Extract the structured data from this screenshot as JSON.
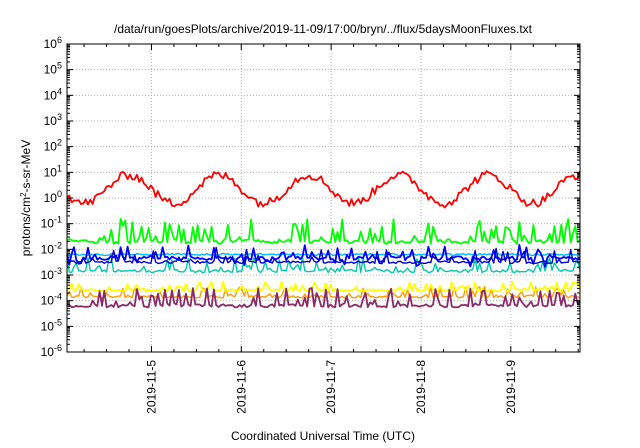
{
  "chart_data": {
    "type": "line",
    "title": "/data/run/goesPlots/archive/2019-11-09/17:00/bryn/../flux/5daysMoonFluxes.txt",
    "xlabel": "Coordinated Universal Time (UTC)",
    "ylabel": {
      "prefix": "protons/cm",
      "sup": "2",
      "suffix": "-s-sr-MeV"
    },
    "yscale": "log",
    "ylim_exp": [
      -6,
      6
    ],
    "y_ticks": [
      {
        "base": "10",
        "exp": "-6"
      },
      {
        "base": "10",
        "exp": "-5"
      },
      {
        "base": "10",
        "exp": "-4"
      },
      {
        "base": "10",
        "exp": "-3"
      },
      {
        "base": "10",
        "exp": "-2"
      },
      {
        "base": "10",
        "exp": "-1"
      },
      {
        "base": "10",
        "exp": "0"
      },
      {
        "base": "10",
        "exp": "1"
      },
      {
        "base": "10",
        "exp": "2"
      },
      {
        "base": "10",
        "exp": "3"
      },
      {
        "base": "10",
        "exp": "4"
      },
      {
        "base": "10",
        "exp": "5"
      },
      {
        "base": "10",
        "exp": "6"
      }
    ],
    "xlim_days": [
      4.06,
      9.77
    ],
    "x_ticks": [
      {
        "label": "2019-11-5",
        "day": 5
      },
      {
        "label": "2019-11-6",
        "day": 6
      },
      {
        "label": "2019-11-7",
        "day": 7
      },
      {
        "label": "2019-11-8",
        "day": 8
      },
      {
        "label": "2019-11-9",
        "day": 9
      }
    ],
    "grid": true,
    "series_style": [
      {
        "color": "#ff0000",
        "width": 1.8
      },
      {
        "color": "#00ff00",
        "width": 1.8
      },
      {
        "color": "#0000ff",
        "width": 1.8
      },
      {
        "color": "#00b8ff",
        "width": 1.4
      },
      {
        "color": "#00c8a8",
        "width": 1.4
      },
      {
        "color": "#0000c8",
        "width": 1.4
      },
      {
        "color": "#ffff00",
        "width": 1.8
      },
      {
        "color": "#ff9a00",
        "width": 1.4
      },
      {
        "color": "#8b2a6b",
        "width": 1.8
      }
    ]
  }
}
